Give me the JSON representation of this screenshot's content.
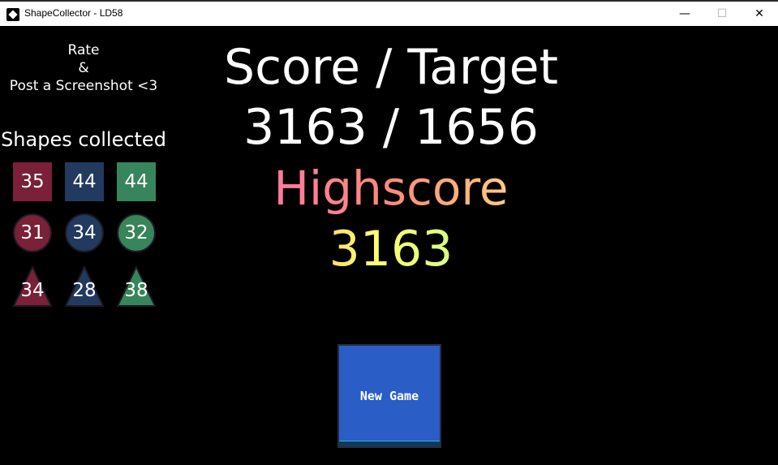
{
  "window": {
    "title": "ShapeCollector - LD58",
    "minimize": "—",
    "maximize": "☐",
    "close": "✕"
  },
  "sidebar": {
    "rate_line1": "Rate",
    "rate_line2": "&",
    "rate_line3": "Post a Screenshot <3",
    "shapes_title": "Shapes collected",
    "colors": {
      "red": "#7a2038",
      "blue": "#223a60",
      "green": "#37855a"
    },
    "shapes": [
      {
        "shape": "square",
        "color": "red",
        "count": "35"
      },
      {
        "shape": "square",
        "color": "blue",
        "count": "44"
      },
      {
        "shape": "square",
        "color": "green",
        "count": "44"
      },
      {
        "shape": "circle",
        "color": "red",
        "count": "31"
      },
      {
        "shape": "circle",
        "color": "blue",
        "count": "34"
      },
      {
        "shape": "circle",
        "color": "green",
        "count": "32"
      },
      {
        "shape": "triangle",
        "color": "red",
        "count": "34"
      },
      {
        "shape": "triangle",
        "color": "blue",
        "count": "28"
      },
      {
        "shape": "triangle",
        "color": "green",
        "count": "38"
      }
    ]
  },
  "score": {
    "header": "Score / Target",
    "value": "3163 / 1656",
    "highscore_label": "Highscore",
    "highscore_value": "3163"
  },
  "new_game_label": "New Game"
}
